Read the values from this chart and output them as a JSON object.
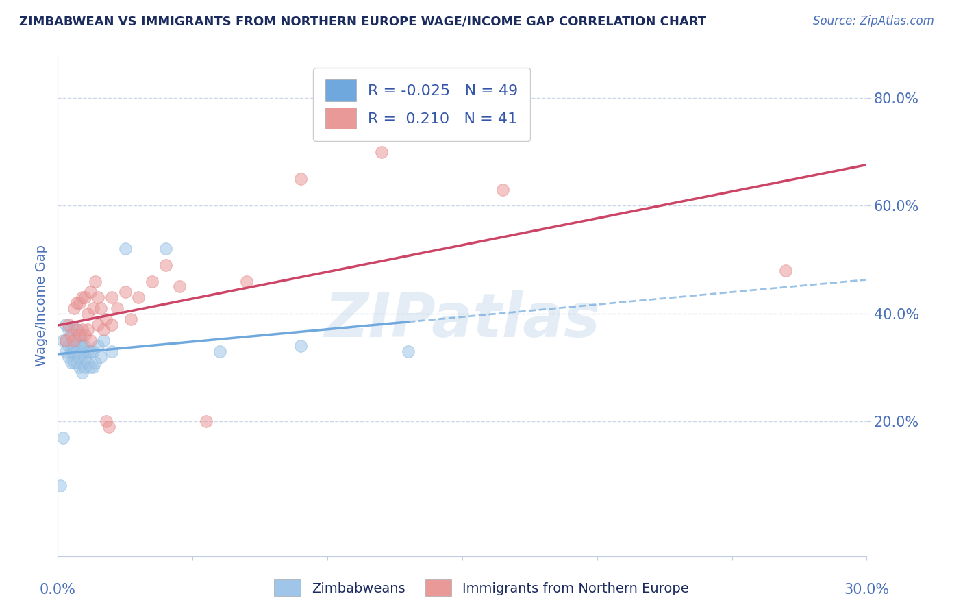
{
  "title": "ZIMBABWEAN VS IMMIGRANTS FROM NORTHERN EUROPE WAGE/INCOME GAP CORRELATION CHART",
  "source_text": "Source: ZipAtlas.com",
  "ylabel_label": "Wage/Income Gap",
  "x_range": [
    0.0,
    0.3
  ],
  "y_range": [
    -0.05,
    0.88
  ],
  "watermark": "ZIPatlas",
  "watermark_color": "#a8c4e0",
  "series1_color": "#9fc5e8",
  "series2_color": "#ea9999",
  "trend1_color": "#6fa8dc",
  "trend2_color": "#cc4466",
  "background_color": "#ffffff",
  "grid_color": "#c0cce0",
  "title_color": "#1c2b5e",
  "axis_color": "#4a6fba",
  "legend_label1": "R = -0.025   N = 49",
  "legend_label2": "R =  0.210   N = 41",
  "legend_color1": "#6fa8dc",
  "legend_color2": "#ea9999",
  "legend_text_color": "#3355aa",
  "bottom_label1": "Zimbabweans",
  "bottom_label2": "Immigrants from Northern Europe",
  "zimbabwean_x": [
    0.001,
    0.002,
    0.002,
    0.003,
    0.003,
    0.003,
    0.004,
    0.004,
    0.004,
    0.005,
    0.005,
    0.005,
    0.005,
    0.006,
    0.006,
    0.006,
    0.006,
    0.007,
    0.007,
    0.007,
    0.007,
    0.008,
    0.008,
    0.008,
    0.008,
    0.009,
    0.009,
    0.009,
    0.009,
    0.009,
    0.01,
    0.01,
    0.01,
    0.011,
    0.011,
    0.012,
    0.012,
    0.013,
    0.013,
    0.014,
    0.015,
    0.016,
    0.017,
    0.02,
    0.025,
    0.04,
    0.06,
    0.09,
    0.13
  ],
  "zimbabwean_y": [
    0.08,
    0.35,
    0.17,
    0.33,
    0.35,
    0.38,
    0.32,
    0.34,
    0.37,
    0.31,
    0.33,
    0.34,
    0.36,
    0.31,
    0.33,
    0.34,
    0.37,
    0.31,
    0.33,
    0.35,
    0.37,
    0.3,
    0.32,
    0.34,
    0.36,
    0.29,
    0.31,
    0.33,
    0.34,
    0.36,
    0.3,
    0.32,
    0.34,
    0.31,
    0.33,
    0.3,
    0.33,
    0.3,
    0.33,
    0.31,
    0.34,
    0.32,
    0.35,
    0.33,
    0.52,
    0.52,
    0.33,
    0.34,
    0.33
  ],
  "northern_europe_x": [
    0.003,
    0.004,
    0.005,
    0.006,
    0.006,
    0.007,
    0.007,
    0.008,
    0.008,
    0.009,
    0.009,
    0.01,
    0.01,
    0.011,
    0.011,
    0.012,
    0.012,
    0.013,
    0.014,
    0.015,
    0.015,
    0.016,
    0.017,
    0.018,
    0.018,
    0.019,
    0.02,
    0.02,
    0.022,
    0.025,
    0.027,
    0.03,
    0.035,
    0.04,
    0.045,
    0.055,
    0.07,
    0.09,
    0.12,
    0.165,
    0.27
  ],
  "northern_europe_y": [
    0.35,
    0.38,
    0.36,
    0.35,
    0.41,
    0.37,
    0.42,
    0.36,
    0.42,
    0.37,
    0.43,
    0.36,
    0.43,
    0.37,
    0.4,
    0.35,
    0.44,
    0.41,
    0.46,
    0.38,
    0.43,
    0.41,
    0.37,
    0.39,
    0.2,
    0.19,
    0.43,
    0.38,
    0.41,
    0.44,
    0.39,
    0.43,
    0.46,
    0.49,
    0.45,
    0.2,
    0.46,
    0.65,
    0.7,
    0.63,
    0.48
  ]
}
